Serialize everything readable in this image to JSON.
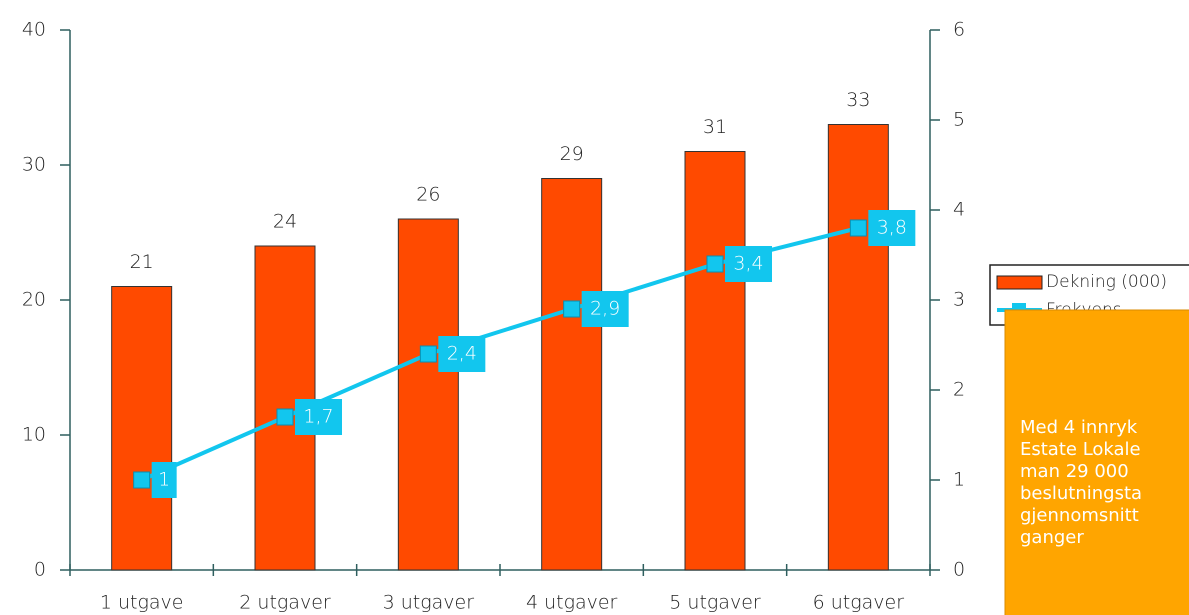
{
  "chart_data": {
    "type": "bar",
    "categories": [
      "1 utgave",
      "2 utgaver",
      "3 utgaver",
      "4 utgaver",
      "5 utgaver",
      "6 utgaver"
    ],
    "series": [
      {
        "name": "Dekning (000)",
        "type": "bar",
        "color": "#ff4a00",
        "values": [
          21,
          24,
          26,
          29,
          31,
          33
        ]
      },
      {
        "name": "Frekvens",
        "type": "line",
        "axis": "y2",
        "color": "#12c6ee",
        "values": [
          1,
          1.7,
          2.4,
          2.9,
          3.4,
          3.8
        ],
        "value_labels": [
          "1",
          "1,7",
          "2,4",
          "2,9",
          "3,4",
          "3,8"
        ]
      }
    ],
    "ylim": [
      0,
      40
    ],
    "yticks": [
      0,
      10,
      20,
      30,
      40
    ],
    "y2lim": [
      0,
      6
    ],
    "y2ticks": [
      0,
      1,
      2,
      3,
      4,
      5,
      6
    ],
    "annotation": [
      "Med 4 innryk",
      "Estate Lokale",
      "man 29 000",
      "beslutningsta",
      "gjennomsnitt",
      "ganger"
    ]
  }
}
